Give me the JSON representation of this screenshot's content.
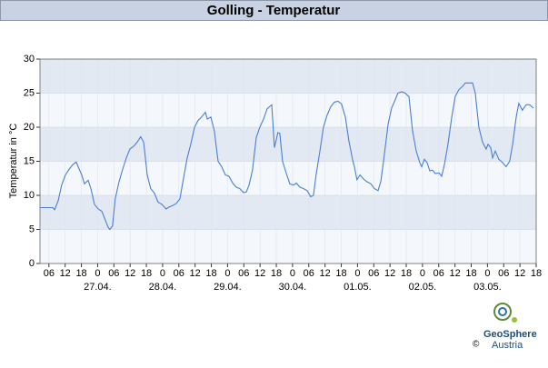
{
  "chart_data": {
    "type": "line",
    "title": "Golling - Temperatur",
    "y_label": "Temperatur in °C",
    "x": [
      2.7,
      7.4,
      8.1,
      9.4,
      10.7,
      12.1,
      13.4,
      14.8,
      16.1,
      16.8,
      18.1,
      19.1,
      20.5,
      21.5,
      22.8,
      24.2,
      25.5,
      26.9,
      27.9,
      28.5,
      29.5,
      30.5,
      31.9,
      33.2,
      34.6,
      35.9,
      37.3,
      38.6,
      39.9,
      41.0,
      42.3,
      43.6,
      45.0,
      46.3,
      47.7,
      49.3,
      50.4,
      51.7,
      53.0,
      54.4,
      55.7,
      57.1,
      58.4,
      59.8,
      61.1,
      62.4,
      63.8,
      64.5,
      65.8,
      67.1,
      68.5,
      69.8,
      71.2,
      72.5,
      73.9,
      75.2,
      76.5,
      77.9,
      78.9,
      79.9,
      81.2,
      82.6,
      83.9,
      85.3,
      86.6,
      88.0,
      88.3,
      89.3,
      90.6,
      91.3,
      92.3,
      93.7,
      95.0,
      96.3,
      97.4,
      98.7,
      100.0,
      101.4,
      102.7,
      103.7,
      104.7,
      106.1,
      107.4,
      108.8,
      110.1,
      111.5,
      112.8,
      114.1,
      115.5,
      116.8,
      118.2,
      118.8,
      119.8,
      120.9,
      122.2,
      123.5,
      124.9,
      126.2,
      127.6,
      128.6,
      129.6,
      131.3,
      132.6,
      133.9,
      134.9,
      136.3,
      137.6,
      139.0,
      140.3,
      141.7,
      143.0,
      143.7,
      144.7,
      145.7,
      146.7,
      147.7,
      148.7,
      150.1,
      151.1,
      152.1,
      153.4,
      154.8,
      156.1,
      157.4,
      158.8,
      159.8,
      161.1,
      162.5,
      163.5,
      164.8,
      166.2,
      167.5,
      168.2,
      169.2,
      169.9,
      170.9,
      172.2,
      173.6,
      174.9,
      176.2,
      177.3,
      178.6,
      179.6,
      180.9,
      182.3,
      183.6,
      185.0
    ],
    "series": [
      {
        "name": "Temperatur",
        "color": "#4a7fd6",
        "values": [
          8.2,
          8.2,
          7.9,
          9.2,
          11.5,
          13,
          13.8,
          14.5,
          14.9,
          14.2,
          13,
          11.7,
          12.2,
          11,
          8.7,
          8.0,
          7.7,
          6.3,
          5.3,
          5,
          5.5,
          9.5,
          12,
          13.8,
          15.5,
          16.8,
          17.2,
          17.8,
          18.6,
          17.8,
          13,
          11,
          10.3,
          9,
          8.7,
          8.0,
          8.3,
          8.5,
          8.8,
          9.5,
          12.5,
          15.5,
          17.5,
          20,
          21,
          21.5,
          22.2,
          21.2,
          21.5,
          19.5,
          15,
          14.2,
          13,
          12.8,
          11.8,
          11.2,
          11,
          10.4,
          10.5,
          11.5,
          13.7,
          18.5,
          20,
          21.2,
          22.7,
          23.2,
          23.3,
          17,
          19.2,
          19.1,
          15,
          13.2,
          11.7,
          11.5,
          11.8,
          11.2,
          11,
          10.7,
          9.8,
          10,
          13,
          16.5,
          20,
          21.8,
          23,
          23.7,
          23.8,
          23.4,
          21.5,
          18,
          15.2,
          14.3,
          12.3,
          13,
          12.4,
          12,
          11.7,
          11,
          10.7,
          12,
          15,
          20.5,
          22.8,
          24,
          25,
          25.2,
          25,
          24.5,
          19.5,
          16.5,
          14.8,
          14.2,
          15.3,
          14.8,
          13.6,
          13.7,
          13.2,
          13.3,
          12.8,
          14.5,
          17.5,
          21.5,
          24.5,
          25.5,
          26,
          26.5,
          26.5,
          26.5,
          25,
          20,
          17.8,
          16.8,
          17.5,
          17,
          15.5,
          16.5,
          15.3,
          14.8,
          14.2,
          15,
          17.5,
          21.5,
          23.5,
          22.5,
          23.3,
          23.3,
          22.8
        ]
      }
    ],
    "xlim": [
      2.7,
      186
    ],
    "xticks": [
      {
        "value": 6,
        "label": "06"
      },
      {
        "value": 12,
        "label": "12"
      },
      {
        "value": 18,
        "label": "18"
      },
      {
        "value": 24,
        "label": "0"
      },
      {
        "value": 30,
        "label": "06"
      },
      {
        "value": 36,
        "label": "12"
      },
      {
        "value": 42,
        "label": "18"
      },
      {
        "value": 48,
        "label": "0"
      },
      {
        "value": 54,
        "label": "06"
      },
      {
        "value": 60,
        "label": "12"
      },
      {
        "value": 66,
        "label": "18"
      },
      {
        "value": 72,
        "label": "0"
      },
      {
        "value": 78,
        "label": "06"
      },
      {
        "value": 84,
        "label": "12"
      },
      {
        "value": 90,
        "label": "18"
      },
      {
        "value": 96,
        "label": "0"
      },
      {
        "value": 102,
        "label": "06"
      },
      {
        "value": 108,
        "label": "12"
      },
      {
        "value": 114,
        "label": "18"
      },
      {
        "value": 120,
        "label": "0"
      },
      {
        "value": 126,
        "label": "06"
      },
      {
        "value": 132,
        "label": "12"
      },
      {
        "value": 138,
        "label": "18"
      },
      {
        "value": 144,
        "label": "0"
      },
      {
        "value": 150,
        "label": "06"
      },
      {
        "value": 156,
        "label": "12"
      },
      {
        "value": 162,
        "label": "18"
      },
      {
        "value": 168,
        "label": "0"
      },
      {
        "value": 174,
        "label": "06"
      },
      {
        "value": 180,
        "label": "12"
      },
      {
        "value": 186,
        "label": "18"
      }
    ],
    "day_labels": [
      {
        "value": 24,
        "label": "27.04."
      },
      {
        "value": 48,
        "label": "28.04."
      },
      {
        "value": 72,
        "label": "29.04."
      },
      {
        "value": 96,
        "label": "30.04."
      },
      {
        "value": 120,
        "label": "01.05."
      },
      {
        "value": 144,
        "label": "02.05."
      },
      {
        "value": 168,
        "label": "03.05."
      }
    ],
    "ylim": [
      0,
      30
    ],
    "yticks": [
      0,
      5,
      10,
      15,
      20,
      25,
      30
    ],
    "grid": true
  },
  "logo": {
    "name": "GeoSphere",
    "sub": "Austria",
    "copyright": "©"
  }
}
